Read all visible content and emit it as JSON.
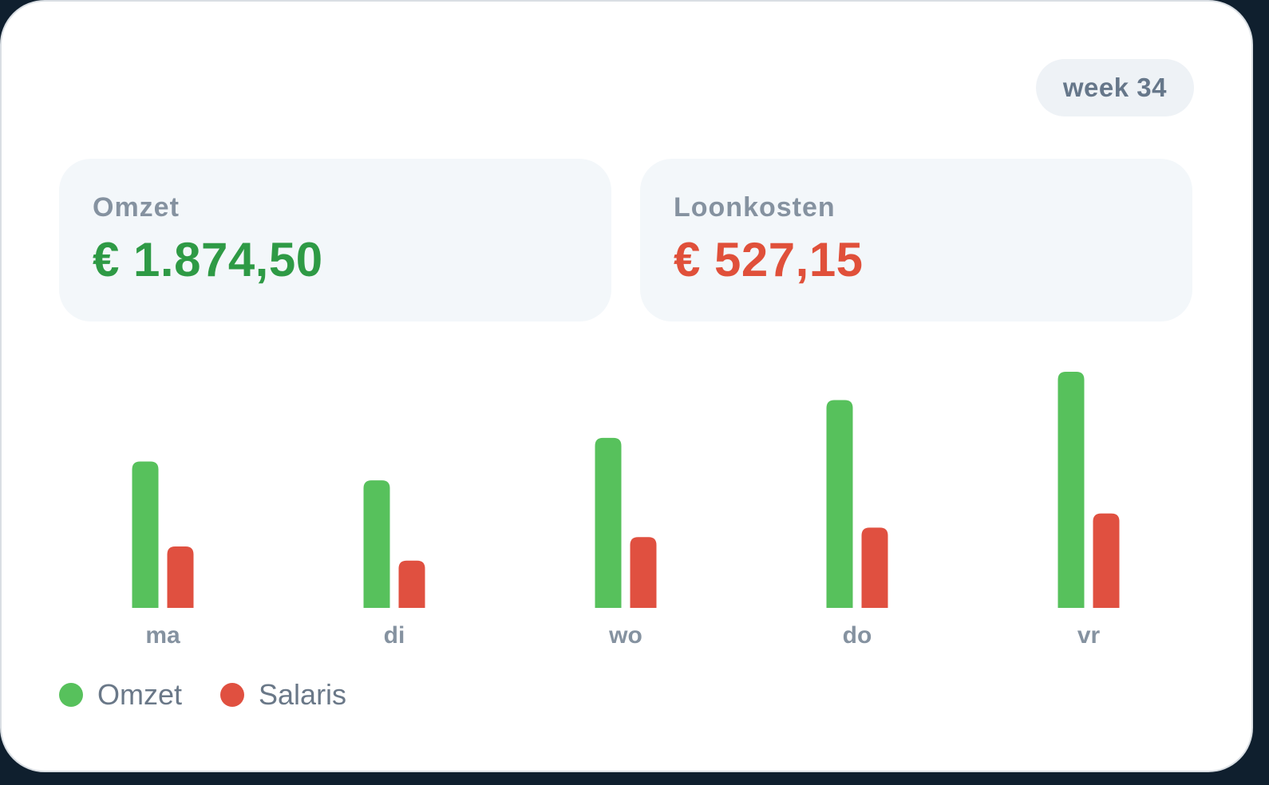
{
  "week_badge": "week 34",
  "stats": {
    "revenue": {
      "label": "Omzet",
      "value": "€ 1.874,50"
    },
    "labor": {
      "label": "Loonkosten",
      "value": "€ 527,15"
    }
  },
  "colors": {
    "revenue": "#57c15c",
    "salary": "#e05040",
    "revenue_text": "#2e9a45",
    "salary_text": "#e0503a"
  },
  "legend": [
    {
      "label": "Omzet",
      "color": "#57c15c"
    },
    {
      "label": "Salaris",
      "color": "#e05040"
    }
  ],
  "chart_data": {
    "type": "bar",
    "categories": [
      "ma",
      "di",
      "wo",
      "do",
      "vr"
    ],
    "series": [
      {
        "name": "Omzet",
        "values": [
          62,
          54,
          72,
          88,
          100
        ]
      },
      {
        "name": "Salaris",
        "values": [
          26,
          20,
          30,
          34,
          40
        ]
      }
    ],
    "title": "",
    "xlabel": "",
    "ylabel": "",
    "ylim": [
      0,
      100
    ],
    "grid": false,
    "legend_position": "bottom-left"
  }
}
